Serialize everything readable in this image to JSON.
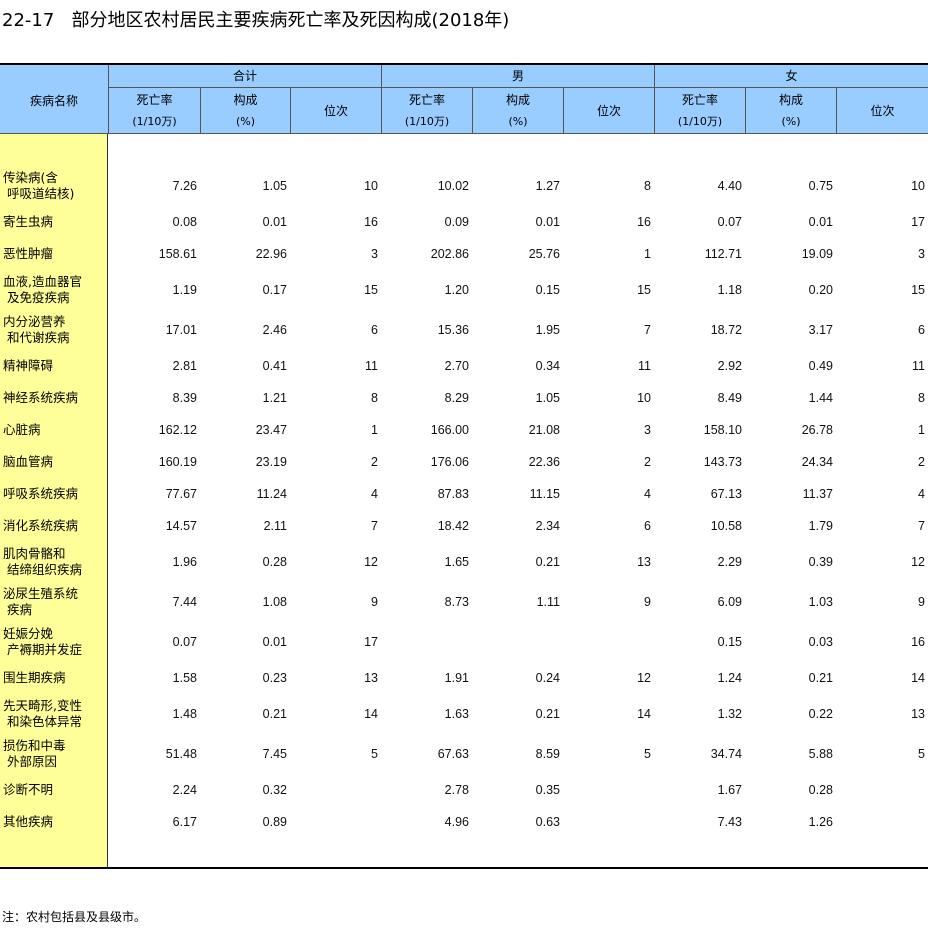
{
  "title": "22-17   部分地区农村居民主要疾病死亡率及死因构成(2018年)",
  "header": {
    "name_col": "疾病名称",
    "groups": [
      "合计",
      "男",
      "女"
    ],
    "sub": [
      {
        "line1": "死亡率",
        "line2": "(1/10万)"
      },
      {
        "line1": "构成",
        "line2": "(%)"
      },
      {
        "line1": "位次",
        "line2": ""
      }
    ]
  },
  "rows": [
    {
      "name": "传染病(含\n 呼吸道结核)",
      "v": [
        "7.26",
        "1.05",
        "10",
        "10.02",
        "1.27",
        "8",
        "4.40",
        "0.75",
        "10"
      ]
    },
    {
      "name": "寄生虫病",
      "v": [
        "0.08",
        "0.01",
        "16",
        "0.09",
        "0.01",
        "16",
        "0.07",
        "0.01",
        "17"
      ]
    },
    {
      "name": "恶性肿瘤",
      "v": [
        "158.61",
        "22.96",
        "3",
        "202.86",
        "25.76",
        "1",
        "112.71",
        "19.09",
        "3"
      ]
    },
    {
      "name": "血液,造血器官\n 及免疫疾病",
      "v": [
        "1.19",
        "0.17",
        "15",
        "1.20",
        "0.15",
        "15",
        "1.18",
        "0.20",
        "15"
      ]
    },
    {
      "name": "内分泌营养\n 和代谢疾病",
      "v": [
        "17.01",
        "2.46",
        "6",
        "15.36",
        "1.95",
        "7",
        "18.72",
        "3.17",
        "6"
      ]
    },
    {
      "name": "精神障碍",
      "v": [
        "2.81",
        "0.41",
        "11",
        "2.70",
        "0.34",
        "11",
        "2.92",
        "0.49",
        "11"
      ]
    },
    {
      "name": "神经系统疾病",
      "v": [
        "8.39",
        "1.21",
        "8",
        "8.29",
        "1.05",
        "10",
        "8.49",
        "1.44",
        "8"
      ]
    },
    {
      "name": "心脏病",
      "v": [
        "162.12",
        "23.47",
        "1",
        "166.00",
        "21.08",
        "3",
        "158.10",
        "26.78",
        "1"
      ]
    },
    {
      "name": "脑血管病",
      "v": [
        "160.19",
        "23.19",
        "2",
        "176.06",
        "22.36",
        "2",
        "143.73",
        "24.34",
        "2"
      ]
    },
    {
      "name": "呼吸系统疾病",
      "v": [
        "77.67",
        "11.24",
        "4",
        "87.83",
        "11.15",
        "4",
        "67.13",
        "11.37",
        "4"
      ]
    },
    {
      "name": "消化系统疾病",
      "v": [
        "14.57",
        "2.11",
        "7",
        "18.42",
        "2.34",
        "6",
        "10.58",
        "1.79",
        "7"
      ]
    },
    {
      "name": "肌肉骨骼和\n 结缔组织疾病",
      "v": [
        "1.96",
        "0.28",
        "12",
        "1.65",
        "0.21",
        "13",
        "2.29",
        "0.39",
        "12"
      ]
    },
    {
      "name": "泌尿生殖系统\n 疾病",
      "v": [
        "7.44",
        "1.08",
        "9",
        "8.73",
        "1.11",
        "9",
        "6.09",
        "1.03",
        "9"
      ]
    },
    {
      "name": "妊娠分娩\n 产褥期并发症",
      "v": [
        "0.07",
        "0.01",
        "17",
        "",
        "",
        "",
        "0.15",
        "0.03",
        "16"
      ]
    },
    {
      "name": "围生期疾病",
      "v": [
        "1.58",
        "0.23",
        "13",
        "1.91",
        "0.24",
        "12",
        "1.24",
        "0.21",
        "14"
      ]
    },
    {
      "name": "先天畸形,变性\n 和染色体异常",
      "v": [
        "1.48",
        "0.21",
        "14",
        "1.63",
        "0.21",
        "14",
        "1.32",
        "0.22",
        "13"
      ]
    },
    {
      "name": "损伤和中毒\n 外部原因",
      "v": [
        "51.48",
        "7.45",
        "5",
        "67.63",
        "8.59",
        "5",
        "34.74",
        "5.88",
        "5"
      ]
    },
    {
      "name": "诊断不明",
      "v": [
        "2.24",
        "0.32",
        "",
        "2.78",
        "0.35",
        "",
        "1.67",
        "0.28",
        ""
      ]
    },
    {
      "name": "其他疾病",
      "v": [
        "6.17",
        "0.89",
        "",
        "4.96",
        "0.63",
        "",
        "7.43",
        "1.26",
        ""
      ]
    }
  ],
  "note": "注：农村包括县及县级市。",
  "colors": {
    "header_bg": "#99ccff",
    "name_col_bg": "#ffff99"
  }
}
